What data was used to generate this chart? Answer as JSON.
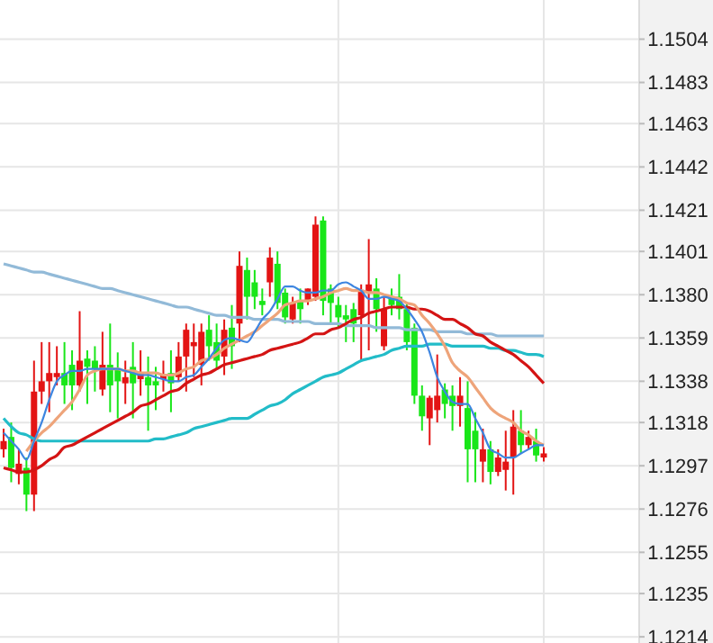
{
  "chart_data": {
    "type": "candlestick",
    "categories": [
      null,
      null,
      null,
      null,
      null,
      null,
      null,
      null,
      null,
      null,
      null,
      null,
      null,
      null,
      null,
      null,
      null,
      null,
      null,
      null,
      null,
      null,
      null,
      null,
      null,
      null,
      null,
      null,
      null,
      null,
      null,
      null,
      null,
      null,
      null,
      null,
      null,
      null,
      null,
      null,
      null,
      null,
      null,
      null,
      null,
      null,
      null,
      null,
      null,
      null,
      null,
      null,
      null,
      null,
      null,
      null,
      null,
      null,
      null,
      null,
      null,
      null,
      null,
      null,
      null,
      null,
      null,
      null,
      null,
      null,
      null,
      null
    ],
    "ohlc": [
      [
        1.1309,
        1.1315,
        1.1301,
        1.1305
      ],
      [
        1.1296,
        1.1318,
        1.1289,
        1.1311
      ],
      [
        1.1298,
        1.1305,
        1.1288,
        1.1293
      ],
      [
        1.1283,
        1.1301,
        1.1275,
        1.1296
      ],
      [
        1.1333,
        1.1348,
        1.1275,
        1.1283
      ],
      [
        1.1338,
        1.1357,
        1.1327,
        1.1333
      ],
      [
        1.1342,
        1.1357,
        1.1323,
        1.1338
      ],
      [
        1.1342,
        1.1355,
        1.1336,
        1.134
      ],
      [
        1.1336,
        1.1357,
        1.1327,
        1.1342
      ],
      [
        1.1336,
        1.1353,
        1.1324,
        1.1346
      ],
      [
        1.1348,
        1.1372,
        1.1333,
        1.1336
      ],
      [
        1.1345,
        1.1353,
        1.1327,
        1.1349
      ],
      [
        1.1344,
        1.1355,
        1.1333,
        1.1348
      ],
      [
        1.1346,
        1.1362,
        1.1331,
        1.1334
      ],
      [
        1.1336,
        1.1366,
        1.1323,
        1.1346
      ],
      [
        1.1338,
        1.1352,
        1.132,
        1.1344
      ],
      [
        1.134,
        1.1348,
        1.1327,
        1.1337
      ],
      [
        1.1337,
        1.1357,
        1.132,
        1.1345
      ],
      [
        1.1342,
        1.1353,
        1.1331,
        1.1339
      ],
      [
        1.1336,
        1.135,
        1.1314,
        1.134
      ],
      [
        1.1336,
        1.1345,
        1.1324,
        1.1338
      ],
      [
        1.1341,
        1.1348,
        1.1333,
        1.1339
      ],
      [
        1.1337,
        1.1353,
        1.1323,
        1.1342
      ],
      [
        1.135,
        1.1357,
        1.1338,
        1.134
      ],
      [
        1.1363,
        1.1366,
        1.1333,
        1.135
      ],
      [
        1.1357,
        1.1366,
        1.134,
        1.1355
      ],
      [
        1.1362,
        1.1366,
        1.1336,
        1.1346
      ],
      [
        1.1355,
        1.137,
        1.1348,
        1.1363
      ],
      [
        1.1348,
        1.1366,
        1.1344,
        1.1357
      ],
      [
        1.1363,
        1.1368,
        1.1341,
        1.135
      ],
      [
        1.1355,
        1.1375,
        1.1344,
        1.1364
      ],
      [
        1.1394,
        1.1401,
        1.1357,
        1.1366
      ],
      [
        1.1379,
        1.1398,
        1.1368,
        1.1392
      ],
      [
        1.1379,
        1.1392,
        1.1373,
        1.1386
      ],
      [
        1.1375,
        1.1383,
        1.137,
        1.1377
      ],
      [
        1.1398,
        1.1403,
        1.1379,
        1.1386
      ],
      [
        1.1376,
        1.1401,
        1.1373,
        1.1395
      ],
      [
        1.1369,
        1.1383,
        1.1366,
        1.1381
      ],
      [
        1.1376,
        1.1379,
        1.1366,
        1.1368
      ],
      [
        1.1373,
        1.1383,
        1.1366,
        1.1377
      ],
      [
        1.1383,
        1.1383,
        1.1375,
        1.1377
      ],
      [
        1.1414,
        1.1418,
        1.1377,
        1.1379
      ],
      [
        1.1377,
        1.1418,
        1.137,
        1.1416
      ],
      [
        1.1376,
        1.1385,
        1.1366,
        1.1383
      ],
      [
        1.1369,
        1.1379,
        1.1364,
        1.1375
      ],
      [
        1.1368,
        1.1375,
        1.1357,
        1.137
      ],
      [
        1.1366,
        1.1376,
        1.1357,
        1.1373
      ],
      [
        1.1382,
        1.1385,
        1.1348,
        1.137
      ],
      [
        1.1385,
        1.1407,
        1.1353,
        1.1381
      ],
      [
        1.1373,
        1.1388,
        1.1362,
        1.1383
      ],
      [
        1.1373,
        1.1379,
        1.1353,
        1.1355
      ],
      [
        1.1375,
        1.1383,
        1.137,
        1.1379
      ],
      [
        1.1373,
        1.139,
        1.1368,
        1.1379
      ],
      [
        1.1357,
        1.1376,
        1.1353,
        1.1373
      ],
      [
        1.1331,
        1.1366,
        1.1327,
        1.1364
      ],
      [
        1.1321,
        1.1336,
        1.1314,
        1.1331
      ],
      [
        1.133,
        1.1331,
        1.1307,
        1.132
      ],
      [
        1.1331,
        1.1351,
        1.1318,
        1.1324
      ],
      [
        1.1327,
        1.1337,
        1.132,
        1.1334
      ],
      [
        1.1326,
        1.1336,
        1.1314,
        1.1331
      ],
      [
        1.1331,
        1.134,
        1.1316,
        1.1326
      ],
      [
        1.1305,
        1.1338,
        1.1289,
        1.1325
      ],
      [
        1.1305,
        1.1323,
        1.1289,
        1.1314
      ],
      [
        1.1305,
        1.1315,
        1.1289,
        1.1299
      ],
      [
        1.1294,
        1.1309,
        1.1288,
        1.1305
      ],
      [
        1.1301,
        1.1305,
        1.1292,
        1.1294
      ],
      [
        1.1299,
        1.1314,
        1.1285,
        1.1295
      ],
      [
        1.1316,
        1.1324,
        1.1283,
        1.1301
      ],
      [
        1.1307,
        1.1324,
        1.1303,
        1.1314
      ],
      [
        1.1311,
        1.1314,
        1.1305,
        1.1307
      ],
      [
        1.1302,
        1.1315,
        1.1299,
        1.1309
      ],
      [
        1.1303,
        1.1306,
        1.1299,
        1.1301
      ]
    ],
    "series": [
      {
        "type": "line",
        "color": "#3d85e0",
        "values": [
          1.1313,
          1.1309,
          1.1305,
          1.13,
          1.1309,
          1.1318,
          1.1329,
          1.1338,
          1.1341,
          1.1343,
          1.1343,
          1.1344,
          1.1344,
          1.1344,
          1.1344,
          1.1344,
          1.1343,
          1.1342,
          1.1341,
          1.1341,
          1.134,
          1.1339,
          1.1338,
          1.1338,
          1.134,
          1.1341,
          1.1345,
          1.1349,
          1.1354,
          1.1358,
          1.1359,
          1.1358,
          1.1357,
          1.1362,
          1.1368,
          1.1372,
          1.1378,
          1.1384,
          1.1384,
          1.1382,
          1.1381,
          1.1381,
          1.1382,
          1.1382,
          1.1385,
          1.1386,
          1.1384,
          1.1382,
          1.1378,
          1.1378,
          1.1379,
          1.1378,
          1.1377,
          1.1373,
          1.1368,
          1.1362,
          1.1352,
          1.134,
          1.1333,
          1.1328,
          1.1327,
          1.1327,
          1.132,
          1.1313,
          1.1305,
          1.1303,
          1.1301,
          1.1301,
          1.1303,
          1.1305,
          1.1307,
          1.1307
        ]
      },
      {
        "type": "line",
        "color": "#eea47a",
        "values": [
          null,
          null,
          null,
          1.1304,
          1.1309,
          1.1313,
          1.1316,
          1.132,
          1.1324,
          1.1328,
          1.1334,
          1.1341,
          1.1343,
          1.1344,
          1.1344,
          1.1344,
          1.1343,
          1.1343,
          1.1342,
          1.1342,
          1.1342,
          1.1341,
          1.1341,
          1.1342,
          1.1344,
          1.1345,
          1.1348,
          1.1349,
          1.1351,
          1.1354,
          1.1356,
          1.1358,
          1.136,
          1.1362,
          1.1365,
          1.1368,
          1.1371,
          1.1375,
          1.1376,
          1.1377,
          1.1377,
          1.1378,
          1.1379,
          1.1381,
          1.1382,
          1.1383,
          1.1382,
          1.1382,
          1.1381,
          1.1381,
          1.138,
          1.1379,
          1.1378,
          1.1376,
          1.1375,
          1.137,
          1.1366,
          1.1361,
          1.1355,
          1.1347,
          1.1343,
          1.134,
          1.1335,
          1.133,
          1.1325,
          1.1322,
          1.132,
          1.1318,
          1.1314,
          1.1312,
          1.1309,
          1.1307
        ]
      },
      {
        "type": "line",
        "color": "#d41414",
        "values": [
          1.1296,
          1.1295,
          1.1294,
          1.1294,
          1.1295,
          1.1297,
          1.13,
          1.1302,
          1.1306,
          1.1307,
          1.1309,
          1.1311,
          1.1313,
          1.1315,
          1.1317,
          1.1319,
          1.1321,
          1.1323,
          1.1326,
          1.1327,
          1.1329,
          1.1331,
          1.1333,
          1.1334,
          1.1337,
          1.1339,
          1.1341,
          1.1342,
          1.1344,
          1.1346,
          1.1347,
          1.1348,
          1.1349,
          1.135,
          1.1351,
          1.1353,
          1.1354,
          1.1355,
          1.1356,
          1.1357,
          1.1359,
          1.1361,
          1.1361,
          1.1363,
          1.1364,
          1.1366,
          1.1368,
          1.1369,
          1.1371,
          1.1372,
          1.1373,
          1.1374,
          1.1374,
          1.1374,
          1.1373,
          1.1373,
          1.1372,
          1.137,
          1.1368,
          1.1368,
          1.1366,
          1.1364,
          1.1361,
          1.136,
          1.1357,
          1.1355,
          1.1353,
          1.1351,
          1.1348,
          1.1345,
          1.1341,
          1.1337
        ]
      },
      {
        "type": "line",
        "color": "#22bcc8",
        "values": [
          1.132,
          1.1316,
          1.1313,
          1.1312,
          1.131,
          1.1309,
          1.1309,
          1.1309,
          1.1309,
          1.1309,
          1.1309,
          1.1309,
          1.1309,
          1.1309,
          1.1309,
          1.1309,
          1.1309,
          1.1309,
          1.1309,
          1.1309,
          1.131,
          1.131,
          1.1311,
          1.1312,
          1.1313,
          1.1315,
          1.1316,
          1.1317,
          1.1318,
          1.1319,
          1.132,
          1.132,
          1.132,
          1.1322,
          1.1324,
          1.1326,
          1.1327,
          1.1329,
          1.1332,
          1.1334,
          1.1336,
          1.1338,
          1.134,
          1.1341,
          1.1342,
          1.1344,
          1.1346,
          1.1348,
          1.1349,
          1.135,
          1.1351,
          1.1353,
          1.1354,
          1.1355,
          1.1355,
          1.1355,
          1.1356,
          1.1356,
          1.1356,
          1.1355,
          1.1355,
          1.1355,
          1.1355,
          1.1355,
          1.1354,
          1.1354,
          1.1353,
          1.1353,
          1.1352,
          1.1351,
          1.1351,
          1.135
        ]
      },
      {
        "type": "line",
        "color": "#92bad8",
        "values": [
          1.1395,
          1.1394,
          1.1393,
          1.1392,
          1.1391,
          1.1391,
          1.139,
          1.1389,
          1.1388,
          1.1387,
          1.1386,
          1.1385,
          1.1384,
          1.1383,
          1.1383,
          1.1382,
          1.1381,
          1.138,
          1.1379,
          1.1378,
          1.1377,
          1.1376,
          1.1375,
          1.1374,
          1.1374,
          1.1373,
          1.1372,
          1.1371,
          1.137,
          1.137,
          1.1369,
          1.1369,
          1.1369,
          1.1368,
          1.1368,
          1.1368,
          1.1368,
          1.1367,
          1.1367,
          1.1367,
          1.1367,
          1.1366,
          1.1366,
          1.1366,
          1.1366,
          1.1365,
          1.1365,
          1.1365,
          1.1365,
          1.1364,
          1.1364,
          1.1364,
          1.1364,
          1.1363,
          1.1363,
          1.1363,
          1.1363,
          1.1362,
          1.1362,
          1.1362,
          1.1362,
          1.1361,
          1.1361,
          1.1361,
          1.1361,
          1.136,
          1.136,
          1.136,
          1.136,
          1.136,
          1.136,
          1.136
        ]
      }
    ],
    "ylim": [
      1.1211,
      1.1523
    ],
    "yticks": [
      {
        "value": 1.1504,
        "label": "1.1504"
      },
      {
        "value": 1.1483,
        "label": "1.1483"
      },
      {
        "value": 1.1463,
        "label": "1.1463"
      },
      {
        "value": 1.1442,
        "label": "1.1442"
      },
      {
        "value": 1.1421,
        "label": "1.1421"
      },
      {
        "value": 1.1401,
        "label": "1.1401"
      },
      {
        "value": 1.138,
        "label": "1.1380"
      },
      {
        "value": 1.1359,
        "label": "1.1359"
      },
      {
        "value": 1.1338,
        "label": "1.1338"
      },
      {
        "value": 1.1318,
        "label": "1.1318"
      },
      {
        "value": 1.1297,
        "label": "1.1297"
      },
      {
        "value": 1.1276,
        "label": "1.1276"
      },
      {
        "value": 1.1255,
        "label": "1.1255"
      },
      {
        "value": 1.1235,
        "label": "1.1235"
      },
      {
        "value": 1.1214,
        "label": "1.1214"
      }
    ],
    "grid": "y",
    "tick_labels": "y"
  }
}
